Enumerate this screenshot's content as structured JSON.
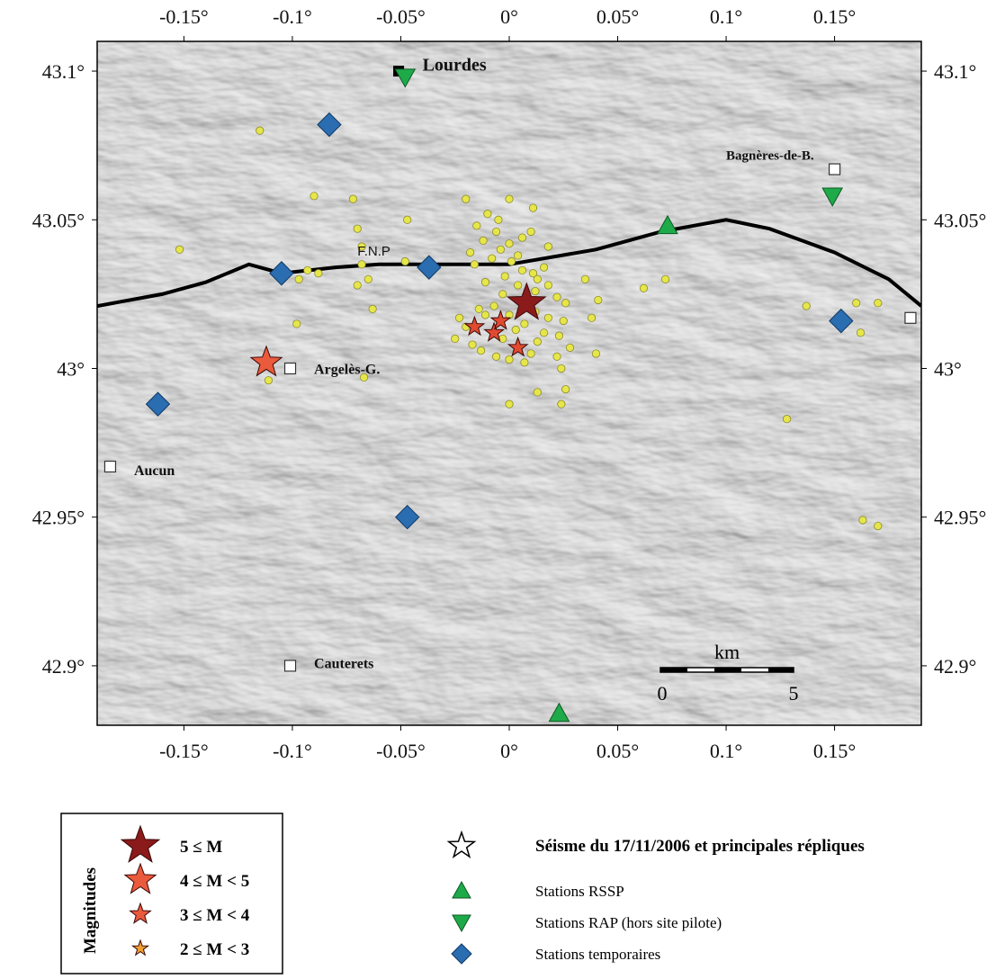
{
  "map": {
    "lon_range": [
      -0.19,
      0.19
    ],
    "lat_range": [
      42.88,
      43.11
    ],
    "x_ticks": [
      {
        "value": -0.15,
        "label": "-0.15°"
      },
      {
        "value": -0.1,
        "label": "-0.1°"
      },
      {
        "value": -0.05,
        "label": "-0.05°"
      },
      {
        "value": 0,
        "label": "0°"
      },
      {
        "value": 0.05,
        "label": "0.05°"
      },
      {
        "value": 0.1,
        "label": "0.1°"
      },
      {
        "value": 0.15,
        "label": "0.15°"
      }
    ],
    "y_ticks": [
      {
        "value": 43.1,
        "label": "43.1°"
      },
      {
        "value": 43.05,
        "label": "43.05°"
      },
      {
        "value": 43.0,
        "label": "43°"
      },
      {
        "value": 42.95,
        "label": "42.95°"
      },
      {
        "value": 42.9,
        "label": "42.9°"
      }
    ],
    "fault": {
      "label": "F.N.P",
      "label_at": [
        -0.07,
        43.038
      ],
      "points": [
        [
          -0.19,
          43.021
        ],
        [
          -0.16,
          43.025
        ],
        [
          -0.14,
          43.029
        ],
        [
          -0.12,
          43.035
        ],
        [
          -0.105,
          43.032
        ],
        [
          -0.08,
          43.034
        ],
        [
          -0.06,
          43.035
        ],
        [
          -0.03,
          43.035
        ],
        [
          0.0,
          43.035
        ],
        [
          0.04,
          43.04
        ],
        [
          0.07,
          43.046
        ],
        [
          0.1,
          43.05
        ],
        [
          0.12,
          43.047
        ],
        [
          0.15,
          43.039
        ],
        [
          0.175,
          43.03
        ],
        [
          0.19,
          43.021
        ]
      ]
    },
    "towns": [
      {
        "name": "Lourdes",
        "lon": -0.051,
        "lat": 43.1,
        "label_at": [
          -0.04,
          43.102
        ],
        "marker": "filled",
        "size": 20
      },
      {
        "name": "Bagnères-de-B.",
        "lon": 0.15,
        "lat": 43.067,
        "label_at": [
          0.1,
          43.072
        ],
        "marker": "open",
        "size": 15
      },
      {
        "name": "Argelès-G.",
        "lon": -0.101,
        "lat": 43.0,
        "label_at": [
          -0.09,
          43.0
        ],
        "marker": "open",
        "size": 16
      },
      {
        "name": "Aucun",
        "lon": -0.184,
        "lat": 42.967,
        "label_at": [
          -0.173,
          42.966
        ],
        "marker": "open",
        "size": 16
      },
      {
        "name": "Cauterets",
        "lon": -0.101,
        "lat": 42.9,
        "label_at": [
          -0.09,
          42.901
        ],
        "marker": "open",
        "size": 16
      },
      {
        "name": "",
        "lon": 0.185,
        "lat": 43.017,
        "label_at": null,
        "marker": "open",
        "size": 0
      }
    ],
    "stations_rssp": [
      {
        "lon": 0.073,
        "lat": 43.048
      },
      {
        "lon": 0.023,
        "lat": 42.884
      }
    ],
    "stations_rap": [
      {
        "lon": -0.048,
        "lat": 43.098
      },
      {
        "lon": 0.149,
        "lat": 43.058
      }
    ],
    "stations_temp": [
      {
        "lon": -0.083,
        "lat": 43.082
      },
      {
        "lon": -0.105,
        "lat": 43.032
      },
      {
        "lon": -0.037,
        "lat": 43.034
      },
      {
        "lon": -0.162,
        "lat": 42.988
      },
      {
        "lon": -0.047,
        "lat": 42.95
      },
      {
        "lon": 0.153,
        "lat": 43.016
      }
    ],
    "quakes": [
      {
        "lon": 0.008,
        "lat": 43.022,
        "mag_class": 5
      },
      {
        "lon": -0.112,
        "lat": 43.002,
        "mag_class": 4
      },
      {
        "lon": -0.016,
        "lat": 43.014,
        "mag_class": 3
      },
      {
        "lon": -0.007,
        "lat": 43.012,
        "mag_class": 3
      },
      {
        "lon": -0.004,
        "lat": 43.016,
        "mag_class": 3
      },
      {
        "lon": 0.004,
        "lat": 43.007,
        "mag_class": 3
      }
    ],
    "aftershocks": [
      [
        -0.115,
        43.08
      ],
      [
        -0.09,
        43.058
      ],
      [
        -0.072,
        43.057
      ],
      [
        -0.07,
        43.047
      ],
      [
        -0.068,
        43.041
      ],
      [
        -0.152,
        43.04
      ],
      [
        -0.093,
        43.033
      ],
      [
        -0.088,
        43.032
      ],
      [
        -0.097,
        43.03
      ],
      [
        -0.07,
        43.028
      ],
      [
        -0.065,
        43.03
      ],
      [
        -0.048,
        43.036
      ],
      [
        -0.068,
        43.035
      ],
      [
        -0.098,
        43.015
      ],
      [
        -0.111,
        42.996
      ],
      [
        -0.067,
        42.997
      ],
      [
        -0.063,
        43.02
      ],
      [
        -0.047,
        43.05
      ],
      [
        -0.02,
        43.057
      ],
      [
        0.0,
        43.057
      ],
      [
        0.011,
        43.054
      ],
      [
        -0.01,
        43.052
      ],
      [
        -0.005,
        43.05
      ],
      [
        -0.015,
        43.048
      ],
      [
        -0.006,
        43.046
      ],
      [
        0.006,
        43.044
      ],
      [
        -0.012,
        43.043
      ],
      [
        0.0,
        43.042
      ],
      [
        -0.004,
        43.04
      ],
      [
        -0.018,
        43.039
      ],
      [
        -0.008,
        43.037
      ],
      [
        0.004,
        43.038
      ],
      [
        -0.016,
        43.035
      ],
      [
        0.001,
        43.036
      ],
      [
        0.006,
        43.033
      ],
      [
        0.011,
        43.032
      ],
      [
        -0.002,
        43.031
      ],
      [
        0.013,
        43.03
      ],
      [
        0.004,
        43.028
      ],
      [
        -0.011,
        43.029
      ],
      [
        0.012,
        43.026
      ],
      [
        0.018,
        43.028
      ],
      [
        0.022,
        43.024
      ],
      [
        -0.003,
        43.025
      ],
      [
        0.0,
        43.018
      ],
      [
        -0.023,
        43.017
      ],
      [
        -0.02,
        43.014
      ],
      [
        -0.025,
        43.01
      ],
      [
        -0.017,
        43.008
      ],
      [
        -0.013,
        43.006
      ],
      [
        -0.006,
        43.004
      ],
      [
        0.0,
        43.003
      ],
      [
        0.007,
        43.002
      ],
      [
        0.01,
        43.005
      ],
      [
        0.013,
        43.009
      ],
      [
        0.016,
        43.012
      ],
      [
        0.018,
        43.017
      ],
      [
        0.012,
        43.019
      ],
      [
        0.007,
        43.015
      ],
      [
        -0.003,
        43.01
      ],
      [
        0.003,
        43.013
      ],
      [
        -0.011,
        43.018
      ],
      [
        -0.014,
        43.02
      ],
      [
        -0.007,
        43.021
      ],
      [
        0.026,
        43.022
      ],
      [
        0.025,
        43.016
      ],
      [
        0.023,
        43.011
      ],
      [
        0.022,
        43.004
      ],
      [
        0.028,
        43.007
      ],
      [
        0.024,
        43.0
      ],
      [
        0.026,
        42.993
      ],
      [
        0.024,
        42.988
      ],
      [
        0.0,
        42.988
      ],
      [
        0.013,
        42.992
      ],
      [
        0.038,
        43.017
      ],
      [
        0.04,
        43.005
      ],
      [
        0.035,
        43.03
      ],
      [
        0.041,
        43.023
      ],
      [
        0.062,
        43.027
      ],
      [
        0.072,
        43.03
      ],
      [
        0.137,
        43.021
      ],
      [
        0.16,
        43.022
      ],
      [
        0.17,
        43.022
      ],
      [
        0.162,
        43.012
      ],
      [
        0.128,
        42.983
      ],
      [
        0.163,
        42.949
      ],
      [
        0.17,
        42.947
      ],
      [
        0.016,
        43.034
      ],
      [
        0.018,
        43.041
      ],
      [
        0.01,
        43.046
      ]
    ],
    "scale_bar": {
      "label": "km",
      "start_label": "0",
      "end_label": "5"
    }
  },
  "legend_magnitudes": {
    "title": "Magnitudes",
    "items": [
      {
        "label": "5 ≤ M",
        "color": "#8b1a1a"
      },
      {
        "label": "4 ≤ M < 5",
        "color": "#ea5a3c"
      },
      {
        "label": "3 ≤ M < 4",
        "color": "#ea5a3c"
      },
      {
        "label": "2 ≤ M < 3",
        "color": "#f0a030"
      }
    ]
  },
  "legend_symbols": {
    "items": [
      {
        "icon": "open-star-icon",
        "label": "Séisme du 17/11/2006 et principales répliques",
        "bold": true
      },
      {
        "icon": "green-triangle-up-icon",
        "label": "Stations RSSP"
      },
      {
        "icon": "green-triangle-down-icon",
        "label": "Stations RAP (hors site pilote)"
      },
      {
        "icon": "blue-diamond-icon",
        "label": "Stations temporaires"
      }
    ]
  },
  "colors": {
    "rssp": "#1faa4a",
    "rap": "#1faa4a",
    "temp": "#2a6db0",
    "aftershock": "#e6e64a",
    "quake5": "#8b1a1a",
    "quake4": "#ea5a3c",
    "quake3": "#e14a30"
  }
}
